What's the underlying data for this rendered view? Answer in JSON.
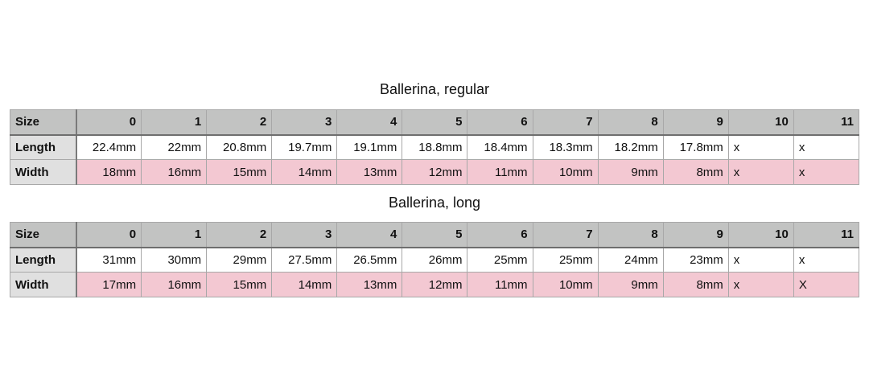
{
  "tables": [
    {
      "title": "Ballerina, regular",
      "rows": [
        {
          "label": "Size",
          "cells": [
            "0",
            "1",
            "2",
            "3",
            "4",
            "5",
            "6",
            "7",
            "8",
            "9",
            "10",
            "11"
          ]
        },
        {
          "label": "Length",
          "cells": [
            "22.4mm",
            "22mm",
            "20.8mm",
            "19.7mm",
            "19.1mm",
            "18.8mm",
            "18.4mm",
            "18.3mm",
            "18.2mm",
            "17.8mm",
            "x",
            "x"
          ]
        },
        {
          "label": "Width",
          "cells": [
            "18mm",
            "16mm",
            "15mm",
            "14mm",
            "13mm",
            "12mm",
            "11mm",
            "10mm",
            "9mm",
            "8mm",
            "x",
            "x"
          ]
        }
      ]
    },
    {
      "title": "Ballerina, long",
      "rows": [
        {
          "label": "Size",
          "cells": [
            "0",
            "1",
            "2",
            "3",
            "4",
            "5",
            "6",
            "7",
            "8",
            "9",
            "10",
            "11"
          ]
        },
        {
          "label": "Length",
          "cells": [
            "31mm",
            "30mm",
            "29mm",
            "27.5mm",
            "26.5mm",
            "26mm",
            "25mm",
            "25mm",
            "24mm",
            "23mm",
            "x",
            "x"
          ]
        },
        {
          "label": "Width",
          "cells": [
            "17mm",
            "16mm",
            "15mm",
            "14mm",
            "13mm",
            "12mm",
            "11mm",
            "10mm",
            "9mm",
            "8mm",
            "x",
            "X"
          ]
        }
      ]
    }
  ],
  "colors": {
    "header": "#c2c3c2",
    "label_column": "#e0e0e0",
    "width_row": "#f3c8d2"
  }
}
